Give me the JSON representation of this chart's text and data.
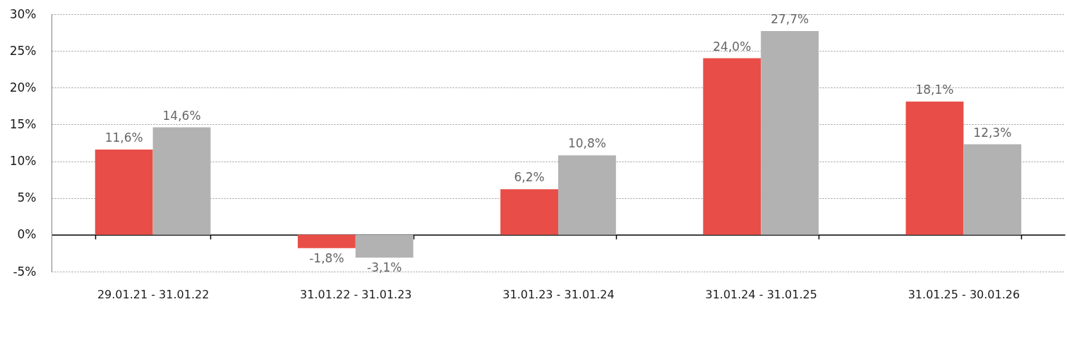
{
  "chart_data": {
    "type": "bar",
    "categories": [
      "29.01.21 - 31.01.22",
      "31.01.22 - 31.01.23",
      "31.01.23 - 31.01.24",
      "31.01.24 - 31.01.25",
      "31.01.25 - 30.01.26"
    ],
    "series": [
      {
        "color": "#e84e47",
        "values": [
          11.6,
          -1.8,
          6.2,
          24.0,
          18.1
        ],
        "value_labels": [
          "11,6%",
          "-1,8%",
          "6,2%",
          "24,0%",
          "18,1%"
        ]
      },
      {
        "color": "#b2b2b2",
        "values": [
          14.6,
          -3.1,
          10.8,
          27.7,
          12.3
        ],
        "value_labels": [
          "14,6%",
          "-3,1%",
          "10,8%",
          "27,7%",
          "12,3%"
        ]
      }
    ],
    "ylim": [
      -5,
      30
    ],
    "yticks": [
      {
        "value": -5,
        "label": "-5%"
      },
      {
        "value": 0,
        "label": "0%"
      },
      {
        "value": 5,
        "label": "5%"
      },
      {
        "value": 10,
        "label": "10%"
      },
      {
        "value": 15,
        "label": "15%"
      },
      {
        "value": 20,
        "label": "20%"
      },
      {
        "value": 25,
        "label": "25%"
      },
      {
        "value": 30,
        "label": "30%"
      }
    ],
    "grid": "y"
  }
}
